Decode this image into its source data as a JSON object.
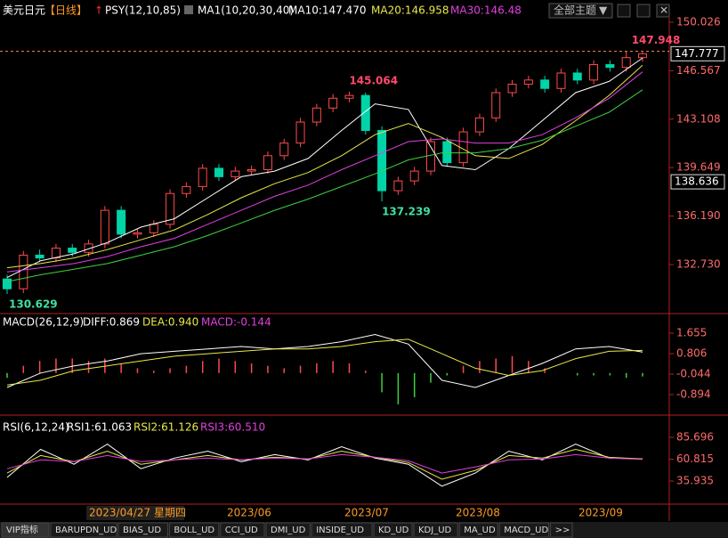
{
  "header": {
    "symbol": "美元日元",
    "period": "【日线】",
    "indicator": "PSY(12,10,85)",
    "ma_title": "MA1(10,20,30,40)",
    "ma10": "MA10:147.470",
    "ma20": "MA20:146.958",
    "ma30": "MA30:146.48",
    "theme_button": "全部主题"
  },
  "chart_data": [
    {
      "type": "candlestick",
      "up_color": "#ff4a4a",
      "down_color": "#00d4a8",
      "open": [
        131.7,
        131.0,
        133.4,
        133.2,
        133.9,
        133.6,
        134.2,
        136.6,
        134.9,
        135.0,
        135.6,
        137.8,
        138.3,
        139.6,
        139.0,
        139.4,
        139.5,
        140.5,
        141.4,
        142.9,
        143.9,
        144.6,
        144.8,
        142.3,
        138.0,
        138.7,
        139.4,
        141.5,
        140.0,
        142.2,
        143.2,
        145.0,
        145.6,
        145.9,
        145.3,
        146.4,
        145.9,
        147.0,
        146.8,
        147.5
      ],
      "high": [
        132.0,
        133.7,
        133.8,
        134.2,
        134.2,
        134.5,
        136.9,
        136.9,
        135.3,
        135.9,
        138.1,
        138.6,
        139.9,
        139.9,
        139.7,
        139.8,
        140.8,
        141.7,
        143.2,
        144.2,
        144.9,
        145.064,
        145.0,
        142.6,
        139.0,
        139.7,
        141.8,
        141.8,
        142.5,
        143.5,
        145.3,
        145.9,
        146.2,
        146.2,
        146.7,
        146.7,
        147.3,
        147.3,
        147.948,
        147.9
      ],
      "low": [
        130.629,
        130.7,
        132.9,
        132.9,
        133.3,
        133.3,
        133.9,
        134.6,
        134.6,
        134.7,
        135.3,
        137.5,
        138.0,
        138.7,
        138.7,
        139.1,
        139.2,
        140.2,
        141.1,
        142.6,
        143.6,
        144.3,
        142.0,
        137.239,
        137.7,
        138.4,
        139.1,
        139.7,
        139.7,
        141.9,
        142.9,
        144.7,
        145.3,
        145.0,
        145.0,
        145.6,
        145.6,
        146.5,
        146.5,
        147.2
      ],
      "close": [
        131.0,
        133.4,
        133.2,
        133.9,
        133.6,
        134.2,
        136.6,
        134.9,
        135.0,
        135.6,
        137.8,
        138.3,
        139.6,
        139.0,
        139.4,
        139.5,
        140.5,
        141.4,
        142.9,
        143.9,
        144.6,
        144.8,
        142.3,
        138.0,
        138.7,
        139.4,
        141.5,
        140.0,
        142.2,
        143.2,
        145.0,
        145.6,
        145.9,
        145.3,
        146.4,
        145.9,
        147.0,
        146.8,
        147.5,
        147.777
      ],
      "series": [
        {
          "name": "MA10",
          "color": "#ffffff",
          "values": [
            131.8,
            133.0,
            133.5,
            134.3,
            135.4,
            136.0,
            137.5,
            139.0,
            139.4,
            140.3,
            142.3,
            144.2,
            143.8,
            139.8,
            139.5,
            141.0,
            143.0,
            145.0,
            145.8,
            147.47
          ]
        },
        {
          "name": "MA20",
          "color": "#e8e84b",
          "values": [
            132.5,
            132.8,
            133.2,
            133.8,
            134.5,
            135.2,
            136.3,
            137.5,
            138.5,
            139.3,
            140.5,
            142.0,
            142.8,
            141.8,
            140.5,
            140.3,
            141.3,
            143.0,
            144.8,
            146.958
          ]
        },
        {
          "name": "MA30",
          "color": "#e040e0",
          "values": [
            132.2,
            132.5,
            132.8,
            133.3,
            134.0,
            134.6,
            135.6,
            136.6,
            137.6,
            138.4,
            139.5,
            140.5,
            141.5,
            141.7,
            141.4,
            141.4,
            142.0,
            143.2,
            144.6,
            146.48
          ]
        },
        {
          "name": "MA40",
          "color": "#40d040",
          "values": [
            131.5,
            132.0,
            132.4,
            132.8,
            133.4,
            134.0,
            134.8,
            135.7,
            136.6,
            137.4,
            138.3,
            139.2,
            140.2,
            140.7,
            140.7,
            141.0,
            141.6,
            142.6,
            143.6,
            145.2
          ]
        }
      ],
      "ylim": [
        129.36,
        150.34
      ],
      "yticks": [
        150.026,
        146.567,
        143.108,
        139.649,
        {
          "value": 136.19,
          "label": "136.190"
        },
        {
          "value": 132.73,
          "label": "132.730"
        }
      ],
      "last_price": 147.777,
      "marker_price": 138.636
    },
    {
      "type": "macd",
      "title": "MACD(26,12,9)",
      "diff_label": "DIFF:0.869",
      "dea_label": "DEA:0.940",
      "macd_label": "MACD:-0.144",
      "series": [
        {
          "name": "DIFF",
          "color": "#ffffff",
          "values": [
            -0.6,
            0.0,
            0.3,
            0.5,
            0.8,
            0.9,
            1.0,
            1.1,
            1.0,
            1.1,
            1.3,
            1.6,
            1.2,
            -0.3,
            -0.6,
            -0.1,
            0.4,
            1.0,
            1.1,
            0.869
          ]
        },
        {
          "name": "DEA",
          "color": "#e8e84b",
          "values": [
            -0.5,
            -0.3,
            0.1,
            0.3,
            0.5,
            0.7,
            0.8,
            0.9,
            1.0,
            1.0,
            1.1,
            1.3,
            1.4,
            0.8,
            0.2,
            -0.1,
            0.1,
            0.6,
            0.9,
            0.94
          ]
        }
      ],
      "histogram": [
        -0.2,
        0.3,
        0.5,
        0.6,
        0.6,
        0.5,
        0.6,
        0.4,
        0.2,
        0.1,
        0.2,
        0.3,
        0.5,
        0.6,
        0.5,
        0.4,
        0.3,
        0.2,
        0.3,
        0.4,
        0.5,
        0.4,
        0.1,
        -0.8,
        -1.3,
        -1.0,
        -0.4,
        -0.1,
        0.3,
        0.5,
        0.6,
        0.7,
        0.5,
        0.2,
        0.0,
        -0.1,
        -0.1,
        -0.1,
        -0.2,
        -0.144
      ],
      "up_color": "#ff4a4a",
      "down_color": "#40d040",
      "ylim": [
        -1.596,
        2.357
      ],
      "yticks": [
        1.655,
        0.806,
        -0.044,
        -0.894
      ]
    },
    {
      "type": "line",
      "title": "RSI(6,12,24)",
      "rsi1_label": "RSI1:61.063",
      "rsi2_label": "RSI2:61.126",
      "rsi3_label": "RSI3:60.510",
      "series": [
        {
          "name": "RSI1",
          "color": "#ffffff",
          "values": [
            40,
            72,
            55,
            78,
            50,
            62,
            70,
            58,
            66,
            60,
            75,
            62,
            55,
            30,
            45,
            70,
            60,
            78,
            62,
            61.063
          ]
        },
        {
          "name": "RSI2",
          "color": "#e8e84b",
          "values": [
            45,
            65,
            58,
            70,
            55,
            60,
            65,
            60,
            63,
            61,
            70,
            63,
            57,
            38,
            48,
            65,
            62,
            72,
            63,
            61.126
          ]
        },
        {
          "name": "RSI3",
          "color": "#e040e0",
          "values": [
            50,
            60,
            58,
            65,
            58,
            60,
            62,
            60,
            62,
            61,
            66,
            63,
            59,
            45,
            52,
            60,
            61,
            66,
            62,
            60.51
          ]
        }
      ],
      "ylim": [
        10.55,
        94.84
      ],
      "yticks": [
        85.696,
        60.815,
        35.935
      ]
    }
  ],
  "time_axis": {
    "cursor_date": "2023/04/27 星期四",
    "months": [
      "2023/06",
      "2023/07",
      "2023/08",
      "2023/09"
    ]
  },
  "tabs": [
    "VIP指标",
    "BARUPDN_UD",
    "BIAS_UD",
    "BOLL_UD",
    "CCI_UD",
    "DMI_UD",
    "INSIDE_UD",
    "KD_UD",
    "KDJ_UD",
    "MA_UD",
    "MACD_UD",
    ">>"
  ]
}
